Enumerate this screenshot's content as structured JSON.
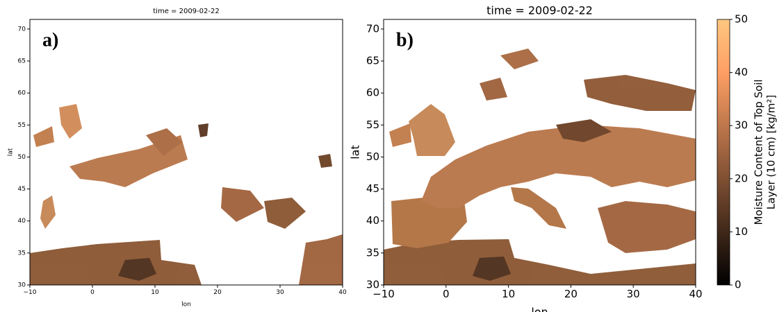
{
  "charts": [
    {
      "type": "heatmap",
      "panel_label": "a)",
      "title": "time = 2009-02-22",
      "xlabel": "lon",
      "ylabel": "lat",
      "xlim": [
        -10,
        40
      ],
      "ylim": [
        30,
        71.5
      ],
      "xticks": [
        {
          "value": -10,
          "label": "−10"
        },
        0,
        10,
        20,
        30,
        40
      ],
      "yticks": [
        30,
        35,
        40,
        45,
        50,
        55,
        60,
        65,
        70
      ]
    },
    {
      "type": "heatmap",
      "panel_label": "b)",
      "title": "time = 2009-02-22",
      "xlabel": "lon",
      "ylabel": "lat",
      "xlim": [
        -10,
        40
      ],
      "ylim": [
        30,
        71.5
      ],
      "xticks": [
        {
          "value": -10,
          "label": "−10"
        },
        0,
        10,
        20,
        30,
        40
      ],
      "yticks": [
        30,
        35,
        40,
        45,
        50,
        55,
        60,
        65,
        70
      ],
      "colorbar_label": [
        "Moisture Content of Top Soil",
        "Layer (10 cm) [kg/m²]"
      ],
      "clim": [
        0,
        50
      ],
      "cticks": [
        0,
        10,
        20,
        30,
        40,
        50
      ],
      "colormap": "copper"
    }
  ]
}
